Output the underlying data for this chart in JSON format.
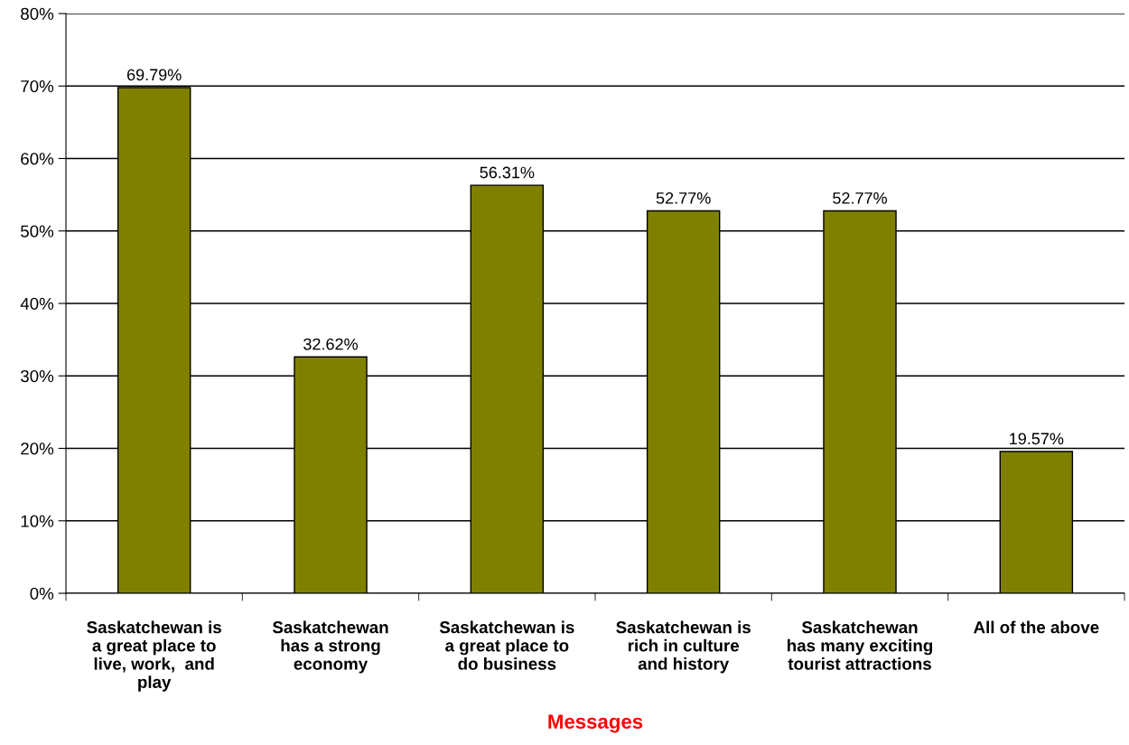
{
  "chart_data": {
    "type": "bar",
    "xlabel": "Messages",
    "categories": [
      "Saskatchewan is\na great place to\nlive, work,  and\nplay",
      "Saskatchewan\nhas a strong\neconomy",
      "Saskatchewan is\na great place to\ndo business",
      "Saskatchewan is\nrich in culture\nand history",
      "Saskatchewan\nhas many exciting\ntourist attractions",
      "All of the above"
    ],
    "values": [
      69.79,
      32.62,
      56.31,
      52.77,
      52.77,
      19.57
    ],
    "value_labels": [
      "69.79%",
      "32.62%",
      "56.31%",
      "52.77%",
      "52.77%",
      "19.57%"
    ],
    "color": "#808000",
    "ylim": [
      0,
      80
    ],
    "yticks": [
      {
        "value": 0,
        "label": "0%"
      },
      {
        "value": 10,
        "label": "10%"
      },
      {
        "value": 20,
        "label": "20%"
      },
      {
        "value": 30,
        "label": "30%"
      },
      {
        "value": 40,
        "label": "40%"
      },
      {
        "value": 50,
        "label": "50%"
      },
      {
        "value": 60,
        "label": "60%"
      },
      {
        "value": 70,
        "label": "70%"
      },
      {
        "value": 80,
        "label": "80%"
      }
    ],
    "grid": "y",
    "legend": false
  }
}
